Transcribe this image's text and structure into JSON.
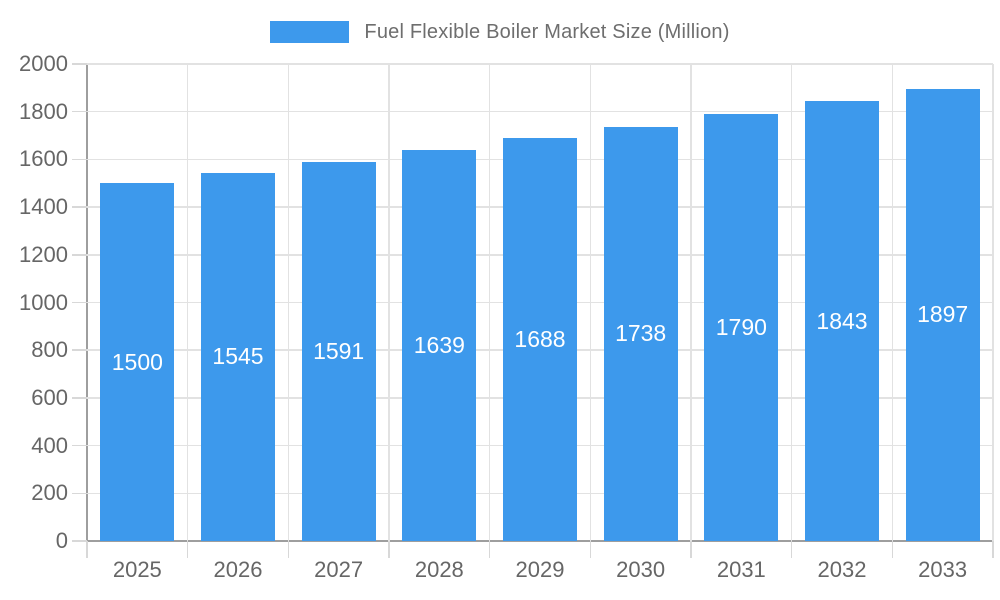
{
  "colors": {
    "bar": "#3D99EC",
    "bar_value_text": "#FFFFFF",
    "axis_text": "#666666",
    "legend_text": "#6E6E6E",
    "grid_line": "#E2E2E2",
    "tick_line": "#D8D8D8",
    "axis_line": "#9E9E9E",
    "background": "#FFFFFF"
  },
  "legend": {
    "label": "Fuel Flexible Boiler Market Size (Million)"
  },
  "chart_data": {
    "type": "bar",
    "title": "Fuel Flexible Boiler Market Size (Million)",
    "categories": [
      "2025",
      "2026",
      "2027",
      "2028",
      "2029",
      "2030",
      "2031",
      "2032",
      "2033"
    ],
    "series": [
      {
        "name": "Fuel Flexible Boiler Market Size (Million)",
        "values": [
          1500,
          1545,
          1591,
          1639,
          1688,
          1738,
          1790,
          1843,
          1897
        ]
      }
    ],
    "xlabel": "",
    "ylabel": "",
    "ylim": [
      0,
      2000
    ],
    "yticks": [
      0,
      200,
      400,
      600,
      800,
      1000,
      1200,
      1400,
      1600,
      1800,
      2000
    ],
    "grid": true,
    "legend_position": "top",
    "value_labels": "inside-center"
  }
}
